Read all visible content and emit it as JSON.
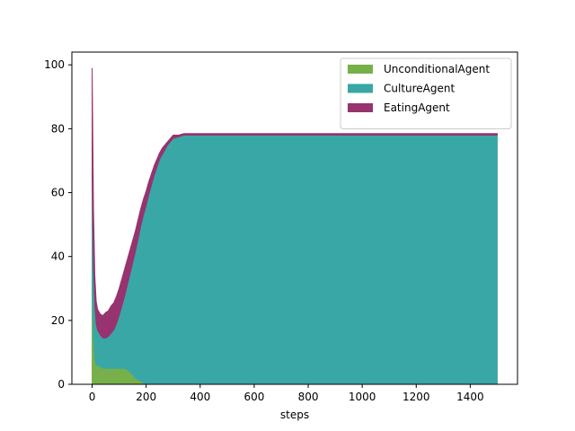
{
  "chart_data": {
    "type": "area",
    "stacked": true,
    "title": "",
    "xlabel": "steps",
    "ylabel": "",
    "xlim": [
      -75,
      1575
    ],
    "ylim": [
      0,
      104
    ],
    "x_ticks": [
      0,
      200,
      400,
      600,
      800,
      1000,
      1200,
      1400
    ],
    "y_ticks": [
      0,
      20,
      40,
      60,
      80,
      100
    ],
    "grid": false,
    "legend_position": "top-right",
    "x": [
      0,
      5,
      10,
      15,
      20,
      30,
      40,
      50,
      60,
      70,
      80,
      90,
      100,
      110,
      120,
      130,
      140,
      150,
      160,
      170,
      180,
      190,
      200,
      210,
      220,
      230,
      240,
      250,
      260,
      270,
      280,
      290,
      300,
      320,
      340,
      360,
      380,
      400,
      500,
      600,
      700,
      800,
      900,
      1000,
      1100,
      1200,
      1300,
      1400,
      1500
    ],
    "series": [
      {
        "name": "UnconditionalAgent",
        "color": "#77b04a",
        "values": [
          30,
          14,
          8,
          6,
          6,
          5.5,
          5,
          5,
          5,
          5,
          5,
          5,
          5,
          5,
          5,
          4.5,
          4,
          3,
          2,
          1.5,
          1,
          0.5,
          0,
          0,
          0,
          0,
          0,
          0,
          0,
          0,
          0,
          0,
          0,
          0,
          0,
          0,
          0,
          0,
          0,
          0,
          0,
          0,
          0,
          0,
          0,
          0,
          0,
          0,
          0
        ]
      },
      {
        "name": "CultureAgent",
        "color": "#39a7a5",
        "values": [
          35,
          23,
          17,
          13,
          11,
          10,
          9.5,
          9.5,
          10,
          11,
          12,
          14,
          16.5,
          19.5,
          22.5,
          26.5,
          30.5,
          35,
          39.5,
          44,
          48.5,
          52.5,
          56,
          59.5,
          62.5,
          65.5,
          68,
          70.5,
          72,
          73.5,
          75,
          76,
          77,
          77.5,
          78,
          78,
          78,
          78,
          78,
          78,
          78,
          78,
          78,
          78,
          78,
          78,
          78,
          78,
          78
        ]
      },
      {
        "name": "EatingAgent",
        "color": "#97336f",
        "values": [
          34,
          18,
          9,
          7,
          6.5,
          6.5,
          7,
          8,
          8,
          8.5,
          8.5,
          8.5,
          8.5,
          8.5,
          8.5,
          8,
          7.5,
          7,
          6.5,
          6,
          5.5,
          5,
          4.5,
          4,
          3.5,
          3,
          2.5,
          2,
          2,
          1.5,
          1,
          1,
          1,
          0.5,
          0.5,
          0.5,
          0.5,
          0.5,
          0.5,
          0.5,
          0.5,
          0.5,
          0.5,
          0.5,
          0.5,
          0.5,
          0.5,
          0.5,
          0.5
        ]
      }
    ]
  }
}
